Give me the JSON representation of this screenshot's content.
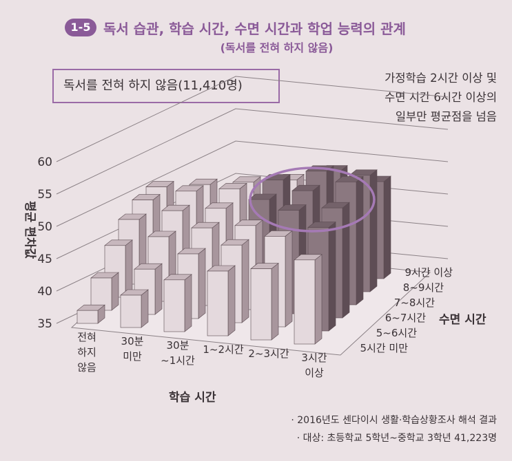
{
  "header": {
    "badge": "1-5",
    "title": "독서 습관, 학습 시간, 수면 시간과 학업 능력의 관계",
    "subtitle": "(독서를 전혀 하지 않음)"
  },
  "group_label": "독서를 전혀 하지 않음(11,410명)",
  "annotation": [
    "가정학습 2시간 이상 및",
    "수면 시간 6시간 이상의",
    "일부만 평균점을 넘음"
  ],
  "sources": [
    "· 2016년도 센다이시 생활·학습상황조사 해석 결과",
    "· 대상: 초등학교 5학년~중학교 3학년 41,223명"
  ],
  "colors": {
    "accent": "#8a5a98",
    "bar_light": "#e4d9dd",
    "bar_dark": "#8b7880"
  },
  "chart_data": {
    "type": "bar",
    "subtype": "3d-grouped",
    "ylabel": "평균 편차값",
    "xlabel": "학습 시간",
    "zlabel": "수면 시간",
    "ylim": [
      35,
      60
    ],
    "yticks": [
      35,
      40,
      45,
      50,
      55,
      60
    ],
    "categories": [
      "전혀 하지 않음",
      "30분 미만",
      "30분 ~1시간",
      "1~2시간",
      "2~3시간",
      "3시간 이상"
    ],
    "category_lines": [
      [
        "전혀",
        "하지",
        "않음"
      ],
      [
        "30분",
        "미만"
      ],
      [
        "30분",
        "~1시간"
      ],
      [
        "1~2시간"
      ],
      [
        "2~3시간"
      ],
      [
        "3시간",
        "이상"
      ]
    ],
    "series": [
      {
        "name": "5시간 미만",
        "values": [
          37,
          40,
          43,
          45,
          46,
          48
        ]
      },
      {
        "name": "5~6시간",
        "values": [
          40,
          42,
          45,
          47,
          49,
          51
        ]
      },
      {
        "name": "6~7시간",
        "values": [
          43,
          45,
          47,
          48,
          51,
          52
        ]
      },
      {
        "name": "7~8시간",
        "values": [
          45,
          47,
          48,
          50,
          52,
          54
        ]
      },
      {
        "name": "8~9시간",
        "values": [
          46,
          48,
          49,
          51,
          53,
          53
        ]
      },
      {
        "name": "9시간 이상",
        "values": [
          46,
          47,
          48,
          49,
          51,
          50
        ]
      }
    ],
    "highlight_threshold": 50,
    "highlight": "above-average bars shaded dark; circled region"
  }
}
